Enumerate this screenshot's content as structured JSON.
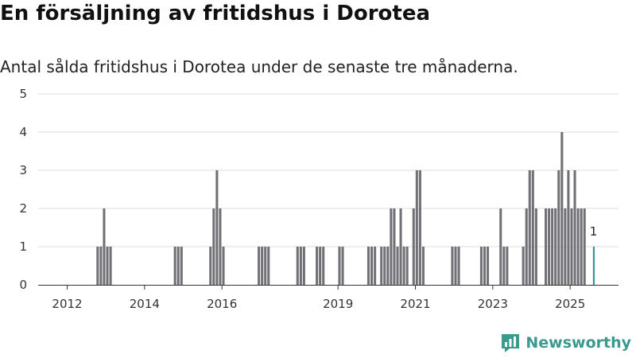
{
  "chart_data": {
    "type": "bar",
    "title": "En försäljning av fritidshus i Dorotea",
    "subtitle": "Antal sålda fritidshus i Dorotea under de senaste tre månaderna.",
    "xlabel": "",
    "ylabel": "",
    "xlim": [
      "2011-04",
      "2026-04"
    ],
    "ylim": [
      0,
      5
    ],
    "y_ticks": [
      0,
      1,
      2,
      3,
      4,
      5
    ],
    "x_tick_labels": [
      "2012",
      "2014",
      "2016",
      "2019",
      "2021",
      "2023",
      "2025"
    ],
    "grid": "horizontal",
    "legend": "none",
    "x": [
      "2012-10",
      "2012-11",
      "2012-12",
      "2013-01",
      "2013-02",
      "2014-10",
      "2014-11",
      "2014-12",
      "2015-09",
      "2015-10",
      "2015-11",
      "2015-12",
      "2016-01",
      "2016-12",
      "2017-01",
      "2017-02",
      "2017-03",
      "2017-12",
      "2018-01",
      "2018-02",
      "2018-06",
      "2018-07",
      "2018-08",
      "2019-01",
      "2019-02",
      "2019-10",
      "2019-11",
      "2019-12",
      "2020-02",
      "2020-03",
      "2020-04",
      "2020-05",
      "2020-06",
      "2020-07",
      "2020-08",
      "2020-09",
      "2020-10",
      "2020-12",
      "2021-01",
      "2021-02",
      "2021-03",
      "2021-12",
      "2022-01",
      "2022-02",
      "2022-09",
      "2022-10",
      "2022-11",
      "2023-03",
      "2023-04",
      "2023-05",
      "2023-10",
      "2023-11",
      "2023-12",
      "2024-01",
      "2024-02",
      "2024-05",
      "2024-06",
      "2024-07",
      "2024-08",
      "2024-09",
      "2024-10",
      "2024-11",
      "2024-12",
      "2025-01",
      "2025-02",
      "2025-03",
      "2025-04",
      "2025-05",
      "2025-08"
    ],
    "values": [
      1,
      1,
      2,
      1,
      1,
      1,
      1,
      1,
      1,
      2,
      3,
      2,
      1,
      1,
      1,
      1,
      1,
      1,
      1,
      1,
      1,
      1,
      1,
      1,
      1,
      1,
      1,
      1,
      1,
      1,
      1,
      2,
      2,
      1,
      2,
      1,
      1,
      2,
      3,
      3,
      1,
      1,
      1,
      1,
      1,
      1,
      1,
      2,
      1,
      1,
      1,
      2,
      3,
      3,
      2,
      2,
      2,
      2,
      2,
      3,
      4,
      2,
      3,
      2,
      3,
      2,
      2,
      2,
      1
    ],
    "bar_color": "#707075",
    "highlight_color": "#2a9d8f",
    "highlight": {
      "x": "2025-08",
      "label": "1"
    }
  },
  "brand": {
    "name": "Newsworthy",
    "color": "#3a9a8e"
  }
}
